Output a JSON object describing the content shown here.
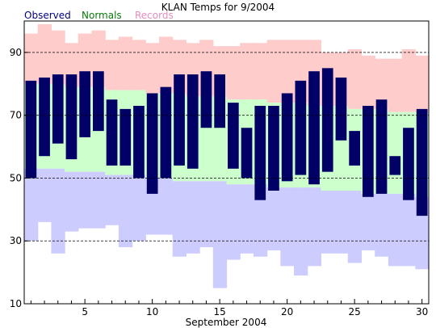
{
  "chart_data": {
    "type": "bar",
    "title": "KLAN Temps for 9/2004",
    "xlabel": "September 2004",
    "ylabel": "",
    "ylim": [
      10,
      100
    ],
    "xlim": [
      0.5,
      30.5
    ],
    "yticks": [
      10,
      30,
      50,
      70,
      90
    ],
    "xticks": [
      5,
      10,
      15,
      20,
      25,
      30
    ],
    "gridlines": [
      30,
      50,
      70,
      90
    ],
    "legend": [
      {
        "label": "Observed",
        "color": "#000080"
      },
      {
        "label": "Normals",
        "color": "#0a7a0a"
      },
      {
        "label": "Records",
        "color": "#e38ec0"
      }
    ],
    "days": [
      1,
      2,
      3,
      4,
      5,
      6,
      7,
      8,
      9,
      10,
      11,
      12,
      13,
      14,
      15,
      16,
      17,
      18,
      19,
      20,
      21,
      22,
      23,
      24,
      25,
      26,
      27,
      28,
      29,
      30
    ],
    "series": [
      {
        "name": "Records",
        "colors": {
          "high": "#ffcccc",
          "low": "#ccccff"
        },
        "high": [
          96,
          99,
          97,
          93,
          96,
          97,
          94,
          95,
          94,
          93,
          95,
          94,
          93,
          94,
          92,
          92,
          93,
          93,
          94,
          94,
          94,
          94,
          90,
          90,
          91,
          89,
          88,
          88,
          91,
          89
        ],
        "low": [
          30,
          36,
          26,
          33,
          34,
          34,
          35,
          28,
          30,
          32,
          32,
          25,
          26,
          28,
          15,
          24,
          26,
          25,
          27,
          22,
          19,
          22,
          26,
          26,
          23,
          27,
          25,
          22,
          22,
          21
        ]
      },
      {
        "name": "Normals",
        "color": "#ccffcc",
        "high": [
          80,
          80,
          80,
          79,
          79,
          79,
          78,
          78,
          78,
          77,
          77,
          77,
          76,
          76,
          76,
          75,
          75,
          75,
          74,
          74,
          74,
          73,
          73,
          73,
          72,
          72,
          72,
          71,
          71,
          71
        ],
        "low": [
          53,
          53,
          53,
          52,
          52,
          52,
          51,
          51,
          51,
          50,
          50,
          49,
          49,
          49,
          49,
          48,
          48,
          48,
          47,
          47,
          47,
          47,
          46,
          46,
          46,
          45,
          45,
          45,
          45,
          44
        ]
      },
      {
        "name": "Observed",
        "color": "#000066",
        "high": [
          81,
          82,
          83,
          83,
          84,
          84,
          75,
          72,
          73,
          77,
          79,
          83,
          83,
          84,
          83,
          74,
          66,
          73,
          73,
          77,
          81,
          84,
          85,
          82,
          65,
          73,
          75,
          57,
          66,
          72
        ],
        "low": [
          50,
          57,
          61,
          56,
          63,
          65,
          54,
          54,
          50,
          45,
          50,
          54,
          53,
          66,
          66,
          53,
          50,
          43,
          46,
          49,
          51,
          48,
          52,
          62,
          54,
          44,
          45,
          51,
          43,
          38
        ]
      }
    ]
  }
}
